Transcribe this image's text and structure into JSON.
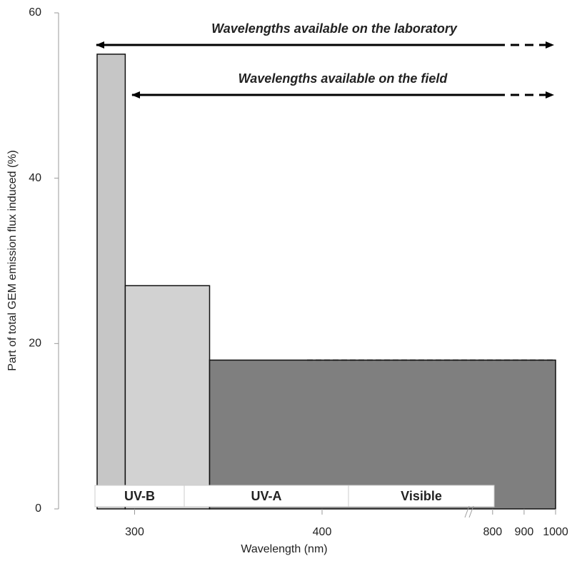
{
  "chart_data": {
    "type": "histogram",
    "x_label": "Wavelength (nm)",
    "y_label": "Part of total GEM emission flux induced (%)",
    "bins": [
      280,
      295,
      340,
      1000
    ],
    "values": [
      55,
      27,
      18
    ],
    "colors": [
      "#c6c6c6",
      "#d2d2d2",
      "#7f7f7f"
    ],
    "xlim": [
      280,
      1000
    ],
    "xticks": [
      300,
      400,
      800,
      900,
      1000
    ],
    "xbreak": [
      480,
      780
    ],
    "ylim": [
      0,
      60
    ],
    "yticks": [
      0,
      20,
      40,
      60
    ],
    "bands": [
      "UV-B",
      "UV-A",
      "Visible"
    ],
    "annotations": [
      "Wavelengths available on the laboratory",
      "Wavelengths available on the field"
    ]
  }
}
